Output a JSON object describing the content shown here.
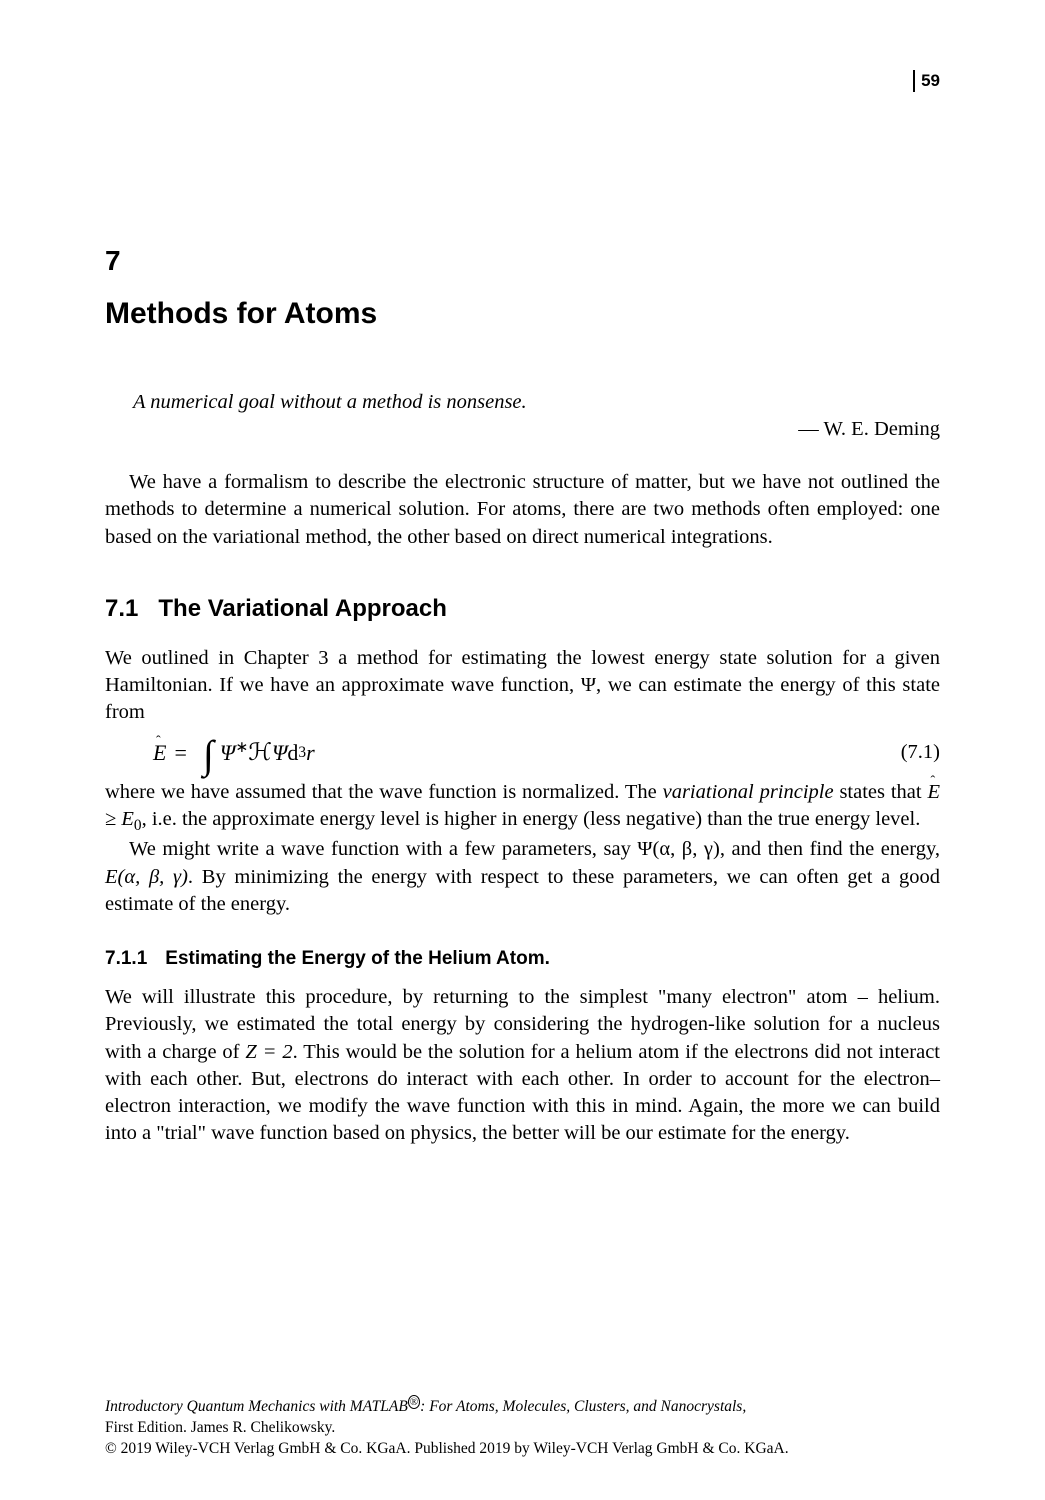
{
  "page_number": "59",
  "chapter": {
    "number": "7",
    "title": "Methods for Atoms"
  },
  "epigraph": {
    "quote": "A numerical goal without a method is nonsense.",
    "author": "— W. E. Deming"
  },
  "intro_paragraph": "We have a formalism to describe the electronic structure of matter, but we have not outlined the methods to determine a numerical solution. For atoms, there are two methods often employed: one based on the variational method, the other based on direct numerical integrations.",
  "section_7_1": {
    "number": "7.1",
    "title": "The Variational Approach",
    "para1_a": "We outlined in Chapter 3 a method for estimating the lowest energy state solution for a given Hamiltonian. If we have an approximate wave function, ",
    "psi": "Ψ",
    "para1_b": ", we can estimate the energy of this state from",
    "equation_1": {
      "number": "(7.1)"
    },
    "para2_a": "where we have assumed that the wave function is normalized. The ",
    "var_principle": "variational principle",
    "para2_b": " states that ",
    "geq": " ≥ ",
    "E0": "E",
    "E0_sub": "0",
    "para2_c": ", i.e. the approximate energy level is higher in energy (less negative) than the true energy level.",
    "para3_a": "We might write a wave function with a few parameters, say ",
    "psi_abg": "Ψ(α, β, γ)",
    "para3_b": ", and then find the energy, ",
    "E_abg": "E(α, β, γ)",
    "para3_c": ". By minimizing the energy with respect to these parameters, we can often get a good estimate of the energy."
  },
  "section_7_1_1": {
    "number": "7.1.1",
    "title": "Estimating the Energy of the Helium Atom.",
    "para_a": "We will illustrate this procedure, by returning to the simplest \"many electron\" atom – helium. Previously, we estimated the total energy by considering the hydrogen-like solution for a nucleus with a charge of ",
    "Z_eq": "Z = 2",
    "para_b": ". This would be the solution for a helium atom if the electrons did not interact with each other. But, electrons do interact with each other. In order to account for the electron–electron interaction, we modify the wave function with this in mind. Again, the more we can build into a \"trial\" wave function based on physics, the better will be our estimate for the energy."
  },
  "footer": {
    "title_a": "Introductory Quantum Mechanics with MATLAB",
    "reg": "®",
    "title_b": ": For Atoms, Molecules, Clusters, and Nanocrystals,",
    "edition": "First Edition. James R. Chelikowsky.",
    "copyright": "© 2019 Wiley-VCH Verlag GmbH & Co. KGaA. Published 2019 by Wiley-VCH Verlag GmbH & Co. KGaA."
  },
  "style": {
    "body_font_size_pt": 20.5,
    "heading_font_size_pt": 24,
    "chapter_title_size_pt": 30,
    "text_color": "#000000",
    "background_color": "#ffffff"
  }
}
